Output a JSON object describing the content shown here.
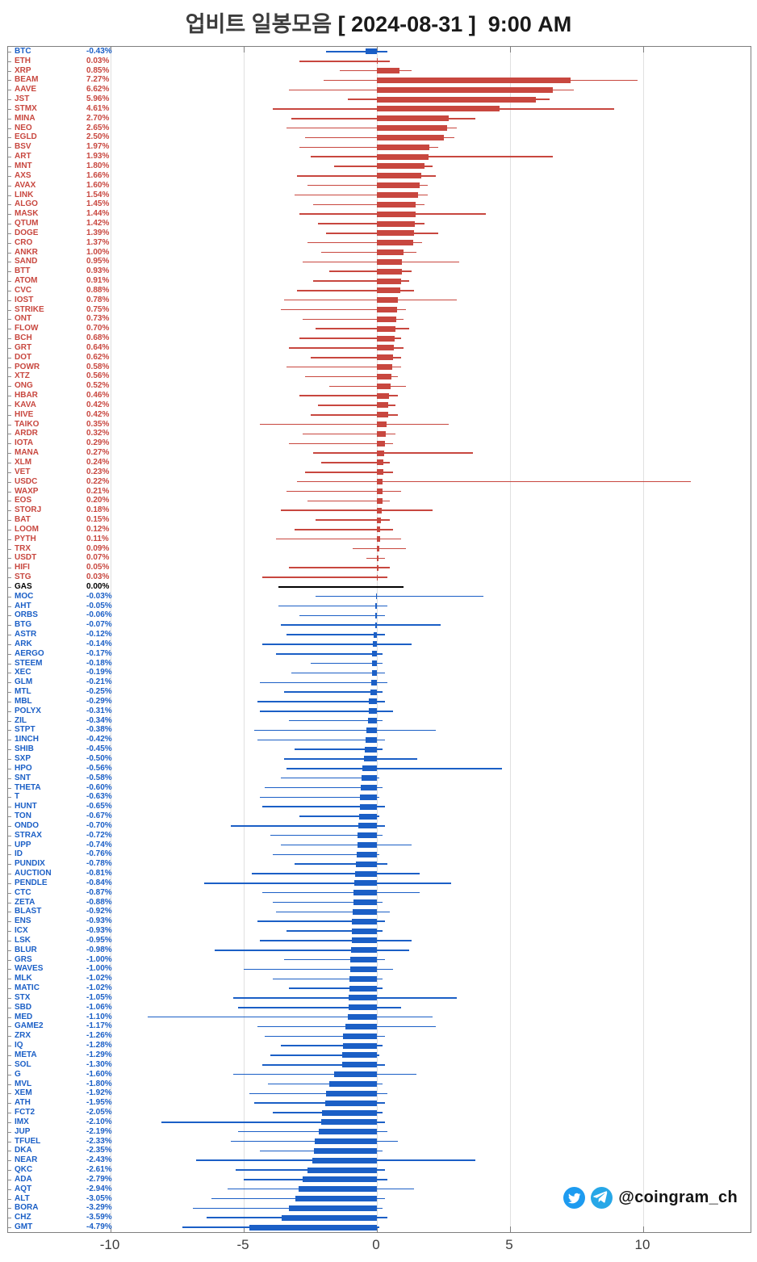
{
  "title": {
    "korean": "업비트 일봉모음",
    "bracket": "[ 2024-08-31 ]",
    "time": "9:00 AM"
  },
  "watermark": {
    "handle": "@coingram_ch"
  },
  "colors": {
    "up": "#c8473f",
    "down": "#1b5fc6",
    "flat": "#000000",
    "grid": "#e0e0e0",
    "border": "#7f7f7f",
    "tick_label": "#3c3c3c",
    "twitter": "#1d9bf0",
    "telegram": "#27a7e7"
  },
  "chart_data": {
    "type": "bar",
    "orientation": "horizontal",
    "title": "업비트 일봉모음 [ 2024-08-31 ]  9:00 AM",
    "value_unit": "%",
    "x_ticks": [
      -10,
      -5,
      0,
      5,
      10
    ],
    "xlim": [
      -13.85,
      14.03
    ],
    "grid": true,
    "note": "bar = daily change %, thin line = low/high range; red = up, blue = down, black = flat",
    "series": [
      {
        "name": "BTC",
        "value": -0.43,
        "low": -1.9,
        "high": 0.4
      },
      {
        "name": "ETH",
        "value": 0.03,
        "low": -2.9,
        "high": 0.5
      },
      {
        "name": "XRP",
        "value": 0.85,
        "low": -1.4,
        "high": 1.3
      },
      {
        "name": "BEAM",
        "value": 7.27,
        "low": -2.0,
        "high": 9.8
      },
      {
        "name": "AAVE",
        "value": 6.62,
        "low": -3.3,
        "high": 7.4
      },
      {
        "name": "JST",
        "value": 5.96,
        "low": -1.1,
        "high": 6.5
      },
      {
        "name": "STMX",
        "value": 4.61,
        "low": -3.9,
        "high": 8.9
      },
      {
        "name": "MINA",
        "value": 2.7,
        "low": -3.2,
        "high": 3.7
      },
      {
        "name": "NEO",
        "value": 2.65,
        "low": -3.4,
        "high": 3.0
      },
      {
        "name": "EGLD",
        "value": 2.5,
        "low": -2.7,
        "high": 2.9
      },
      {
        "name": "BSV",
        "value": 1.97,
        "low": -2.9,
        "high": 2.3
      },
      {
        "name": "ART",
        "value": 1.93,
        "low": -2.5,
        "high": 6.6
      },
      {
        "name": "MNT",
        "value": 1.8,
        "low": -1.6,
        "high": 2.1
      },
      {
        "name": "AXS",
        "value": 1.66,
        "low": -3.0,
        "high": 2.2
      },
      {
        "name": "AVAX",
        "value": 1.6,
        "low": -2.6,
        "high": 1.9
      },
      {
        "name": "LINK",
        "value": 1.54,
        "low": -3.1,
        "high": 1.9
      },
      {
        "name": "ALGO",
        "value": 1.45,
        "low": -2.4,
        "high": 1.8
      },
      {
        "name": "MASK",
        "value": 1.44,
        "low": -2.9,
        "high": 4.1
      },
      {
        "name": "QTUM",
        "value": 1.42,
        "low": -2.2,
        "high": 1.8
      },
      {
        "name": "DOGE",
        "value": 1.39,
        "low": -1.9,
        "high": 2.3
      },
      {
        "name": "CRO",
        "value": 1.37,
        "low": -2.6,
        "high": 1.7
      },
      {
        "name": "ANKR",
        "value": 1.0,
        "low": -2.1,
        "high": 1.5
      },
      {
        "name": "SAND",
        "value": 0.95,
        "low": -2.8,
        "high": 3.1
      },
      {
        "name": "BTT",
        "value": 0.93,
        "low": -1.8,
        "high": 1.3
      },
      {
        "name": "ATOM",
        "value": 0.91,
        "low": -2.4,
        "high": 1.2
      },
      {
        "name": "CVC",
        "value": 0.88,
        "low": -3.0,
        "high": 1.4
      },
      {
        "name": "IOST",
        "value": 0.78,
        "low": -3.5,
        "high": 3.0
      },
      {
        "name": "STRIKE",
        "value": 0.75,
        "low": -3.6,
        "high": 1.1
      },
      {
        "name": "ONT",
        "value": 0.73,
        "low": -2.8,
        "high": 1.0
      },
      {
        "name": "FLOW",
        "value": 0.7,
        "low": -2.3,
        "high": 1.2
      },
      {
        "name": "BCH",
        "value": 0.68,
        "low": -2.9,
        "high": 0.9
      },
      {
        "name": "GRT",
        "value": 0.64,
        "low": -3.3,
        "high": 1.0
      },
      {
        "name": "DOT",
        "value": 0.62,
        "low": -2.5,
        "high": 0.9
      },
      {
        "name": "POWR",
        "value": 0.58,
        "low": -3.4,
        "high": 0.9
      },
      {
        "name": "XTZ",
        "value": 0.56,
        "low": -2.7,
        "high": 0.8
      },
      {
        "name": "ONG",
        "value": 0.52,
        "low": -1.8,
        "high": 1.1
      },
      {
        "name": "HBAR",
        "value": 0.46,
        "low": -2.9,
        "high": 0.8
      },
      {
        "name": "KAVA",
        "value": 0.42,
        "low": -2.2,
        "high": 0.7
      },
      {
        "name": "HIVE",
        "value": 0.42,
        "low": -2.5,
        "high": 0.8
      },
      {
        "name": "TAIKO",
        "value": 0.35,
        "low": -4.4,
        "high": 2.7
      },
      {
        "name": "ARDR",
        "value": 0.32,
        "low": -2.8,
        "high": 0.7
      },
      {
        "name": "IOTA",
        "value": 0.29,
        "low": -3.3,
        "high": 0.6
      },
      {
        "name": "MANA",
        "value": 0.27,
        "low": -2.4,
        "high": 3.6
      },
      {
        "name": "XLM",
        "value": 0.24,
        "low": -2.1,
        "high": 0.5
      },
      {
        "name": "VET",
        "value": 0.23,
        "low": -2.7,
        "high": 0.6
      },
      {
        "name": "USDC",
        "value": 0.22,
        "low": -3.0,
        "high": 11.8
      },
      {
        "name": "WAXP",
        "value": 0.21,
        "low": -3.4,
        "high": 0.9
      },
      {
        "name": "EOS",
        "value": 0.2,
        "low": -2.6,
        "high": 0.5
      },
      {
        "name": "STORJ",
        "value": 0.18,
        "low": -3.6,
        "high": 2.1
      },
      {
        "name": "BAT",
        "value": 0.15,
        "low": -2.3,
        "high": 0.5
      },
      {
        "name": "LOOM",
        "value": 0.12,
        "low": -3.1,
        "high": 0.6
      },
      {
        "name": "PYTH",
        "value": 0.11,
        "low": -3.8,
        "high": 0.9
      },
      {
        "name": "TRX",
        "value": 0.09,
        "low": -0.9,
        "high": 1.1
      },
      {
        "name": "USDT",
        "value": 0.07,
        "low": -0.4,
        "high": 0.3
      },
      {
        "name": "HIFI",
        "value": 0.05,
        "low": -3.3,
        "high": 0.5
      },
      {
        "name": "STG",
        "value": 0.03,
        "low": -4.3,
        "high": 0.4
      },
      {
        "name": "GAS",
        "value": 0.0,
        "low": -3.7,
        "high": 1.0
      },
      {
        "name": "MOC",
        "value": -0.03,
        "low": -2.3,
        "high": 4.0
      },
      {
        "name": "AHT",
        "value": -0.05,
        "low": -3.7,
        "high": 0.4
      },
      {
        "name": "ORBS",
        "value": -0.06,
        "low": -2.9,
        "high": 0.3
      },
      {
        "name": "BTG",
        "value": -0.07,
        "low": -3.6,
        "high": 2.4
      },
      {
        "name": "ASTR",
        "value": -0.12,
        "low": -3.4,
        "high": 0.3
      },
      {
        "name": "ARK",
        "value": -0.14,
        "low": -4.3,
        "high": 1.3
      },
      {
        "name": "AERGO",
        "value": -0.17,
        "low": -3.8,
        "high": 0.2
      },
      {
        "name": "STEEM",
        "value": -0.18,
        "low": -2.5,
        "high": 0.2
      },
      {
        "name": "XEC",
        "value": -0.19,
        "low": -3.2,
        "high": 0.3
      },
      {
        "name": "GLM",
        "value": -0.21,
        "low": -4.4,
        "high": 0.4
      },
      {
        "name": "MTL",
        "value": -0.25,
        "low": -3.5,
        "high": 0.2
      },
      {
        "name": "MBL",
        "value": -0.29,
        "low": -4.5,
        "high": 0.3
      },
      {
        "name": "POLYX",
        "value": -0.31,
        "low": -4.4,
        "high": 0.6
      },
      {
        "name": "ZIL",
        "value": -0.34,
        "low": -3.3,
        "high": 0.2
      },
      {
        "name": "STPT",
        "value": -0.38,
        "low": -4.6,
        "high": 2.2
      },
      {
        "name": "1INCH",
        "value": -0.42,
        "low": -4.5,
        "high": 0.3
      },
      {
        "name": "SHIB",
        "value": -0.45,
        "low": -3.1,
        "high": 0.2
      },
      {
        "name": "SXP",
        "value": -0.5,
        "low": -3.5,
        "high": 1.5
      },
      {
        "name": "HPO",
        "value": -0.56,
        "low": -3.4,
        "high": 4.7
      },
      {
        "name": "SNT",
        "value": -0.58,
        "low": -3.6,
        "high": 0.1
      },
      {
        "name": "THETA",
        "value": -0.6,
        "low": -4.2,
        "high": 0.2
      },
      {
        "name": "T",
        "value": -0.63,
        "low": -4.4,
        "high": 0.1
      },
      {
        "name": "HUNT",
        "value": -0.65,
        "low": -4.3,
        "high": 0.3
      },
      {
        "name": "TON",
        "value": -0.67,
        "low": -2.9,
        "high": 0.1
      },
      {
        "name": "ONDO",
        "value": -0.7,
        "low": -5.5,
        "high": 0.3
      },
      {
        "name": "STRAX",
        "value": -0.72,
        "low": -4.0,
        "high": 0.2
      },
      {
        "name": "UPP",
        "value": -0.74,
        "low": -3.6,
        "high": 1.3
      },
      {
        "name": "ID",
        "value": -0.76,
        "low": -3.9,
        "high": 0.1
      },
      {
        "name": "PUNDIX",
        "value": -0.78,
        "low": -3.1,
        "high": 0.4
      },
      {
        "name": "AUCTION",
        "value": -0.81,
        "low": -4.7,
        "high": 1.6
      },
      {
        "name": "PENDLE",
        "value": -0.84,
        "low": -6.5,
        "high": 2.8
      },
      {
        "name": "CTC",
        "value": -0.87,
        "low": -4.3,
        "high": 1.6
      },
      {
        "name": "ZETA",
        "value": -0.88,
        "low": -3.9,
        "high": 0.2
      },
      {
        "name": "BLAST",
        "value": -0.92,
        "low": -3.8,
        "high": 0.5
      },
      {
        "name": "ENS",
        "value": -0.93,
        "low": -4.5,
        "high": 0.3
      },
      {
        "name": "ICX",
        "value": -0.93,
        "low": -3.4,
        "high": 0.2
      },
      {
        "name": "LSK",
        "value": -0.95,
        "low": -4.4,
        "high": 1.3
      },
      {
        "name": "BLUR",
        "value": -0.98,
        "low": -6.1,
        "high": 1.2
      },
      {
        "name": "GRS",
        "value": -1.0,
        "low": -3.5,
        "high": 0.3
      },
      {
        "name": "WAVES",
        "value": -1.0,
        "low": -5.0,
        "high": 0.6
      },
      {
        "name": "MLK",
        "value": -1.02,
        "low": -3.9,
        "high": 0.2
      },
      {
        "name": "MATIC",
        "value": -1.02,
        "low": -3.3,
        "high": 0.2
      },
      {
        "name": "STX",
        "value": -1.05,
        "low": -5.4,
        "high": 3.0
      },
      {
        "name": "SBD",
        "value": -1.06,
        "low": -5.2,
        "high": 0.9
      },
      {
        "name": "MED",
        "value": -1.1,
        "low": -8.6,
        "high": 2.1
      },
      {
        "name": "GAME2",
        "value": -1.17,
        "low": -4.5,
        "high": 2.2
      },
      {
        "name": "ZRX",
        "value": -1.26,
        "low": -4.2,
        "high": 0.3
      },
      {
        "name": "IQ",
        "value": -1.28,
        "low": -3.6,
        "high": 0.2
      },
      {
        "name": "META",
        "value": -1.29,
        "low": -4.0,
        "high": 0.1
      },
      {
        "name": "SOL",
        "value": -1.3,
        "low": -4.3,
        "high": 0.3
      },
      {
        "name": "G",
        "value": -1.6,
        "low": -5.4,
        "high": 1.5
      },
      {
        "name": "MVL",
        "value": -1.8,
        "low": -4.1,
        "high": 0.2
      },
      {
        "name": "XEM",
        "value": -1.92,
        "low": -4.8,
        "high": 0.4
      },
      {
        "name": "ATH",
        "value": -1.95,
        "low": -4.6,
        "high": 0.3
      },
      {
        "name": "FCT2",
        "value": -2.05,
        "low": -3.9,
        "high": 0.2
      },
      {
        "name": "IMX",
        "value": -2.1,
        "low": -8.1,
        "high": 0.3
      },
      {
        "name": "JUP",
        "value": -2.19,
        "low": -5.2,
        "high": 0.4
      },
      {
        "name": "TFUEL",
        "value": -2.33,
        "low": -5.5,
        "high": 0.8
      },
      {
        "name": "DKA",
        "value": -2.35,
        "low": -4.4,
        "high": 0.2
      },
      {
        "name": "NEAR",
        "value": -2.43,
        "low": -6.8,
        "high": 3.7
      },
      {
        "name": "QKC",
        "value": -2.61,
        "low": -5.3,
        "high": 0.3
      },
      {
        "name": "ADA",
        "value": -2.79,
        "low": -5.0,
        "high": 0.4
      },
      {
        "name": "AQT",
        "value": -2.94,
        "low": -5.6,
        "high": 1.4
      },
      {
        "name": "ALT",
        "value": -3.05,
        "low": -6.2,
        "high": 0.3
      },
      {
        "name": "BORA",
        "value": -3.29,
        "low": -6.9,
        "high": 0.2
      },
      {
        "name": "CHZ",
        "value": -3.59,
        "low": -6.4,
        "high": 0.4
      },
      {
        "name": "GMT",
        "value": -4.79,
        "low": -7.3,
        "high": 0.1
      }
    ]
  }
}
